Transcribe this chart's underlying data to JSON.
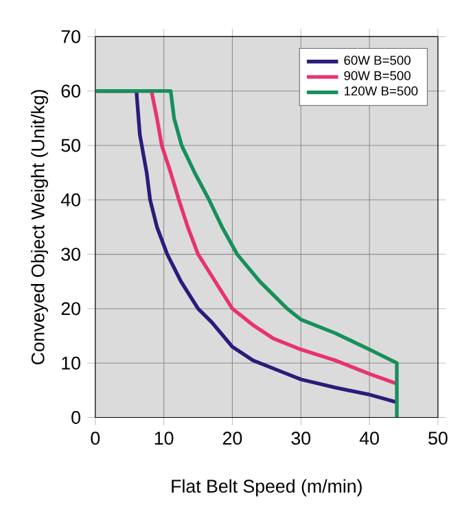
{
  "chart_data": {
    "type": "line",
    "xlabel": "Flat Belt Speed (m/min)",
    "ylabel": "Conveyed Object Weight (Unit/kg)",
    "xlim": [
      0,
      50
    ],
    "ylim": [
      0,
      70
    ],
    "xticks": [
      0,
      10,
      20,
      30,
      40,
      50
    ],
    "yticks": [
      0,
      10,
      20,
      30,
      40,
      50,
      60,
      70
    ],
    "grid": true,
    "legend": "top right",
    "marker": "none",
    "line_style": "solid",
    "series": [
      {
        "name": "60W B=500",
        "color": "#2e1a7a",
        "x": [
          0,
          6,
          6.5,
          7.5,
          8,
          9,
          10.5,
          12.5,
          15,
          17,
          20,
          23,
          27,
          30,
          35,
          40,
          42,
          44
        ],
        "values": [
          60,
          60,
          52,
          45,
          40,
          35,
          30,
          25,
          20,
          17.5,
          13,
          10.5,
          8.5,
          7,
          5.5,
          4.2,
          3.5,
          2.8
        ]
      },
      {
        "name": "90W B=500",
        "color": "#e8336e",
        "x": [
          0,
          8.2,
          9,
          9.7,
          11,
          12.2,
          13.5,
          15,
          17,
          20,
          23,
          26,
          30,
          35,
          40,
          44
        ],
        "values": [
          60,
          60,
          55,
          50,
          45,
          40,
          35,
          30,
          26,
          20,
          17,
          14.5,
          12.5,
          10.5,
          8,
          6.2
        ]
      },
      {
        "name": "120W B=500",
        "color": "#16905a",
        "x": [
          0,
          11,
          11.5,
          12.6,
          14.5,
          16.6,
          18.5,
          20.7,
          24,
          28,
          30,
          35,
          40,
          44,
          44
        ],
        "values": [
          60,
          60,
          55,
          50,
          45,
          40,
          35,
          30,
          25,
          20,
          18,
          15.5,
          12.5,
          10,
          0
        ]
      }
    ]
  }
}
